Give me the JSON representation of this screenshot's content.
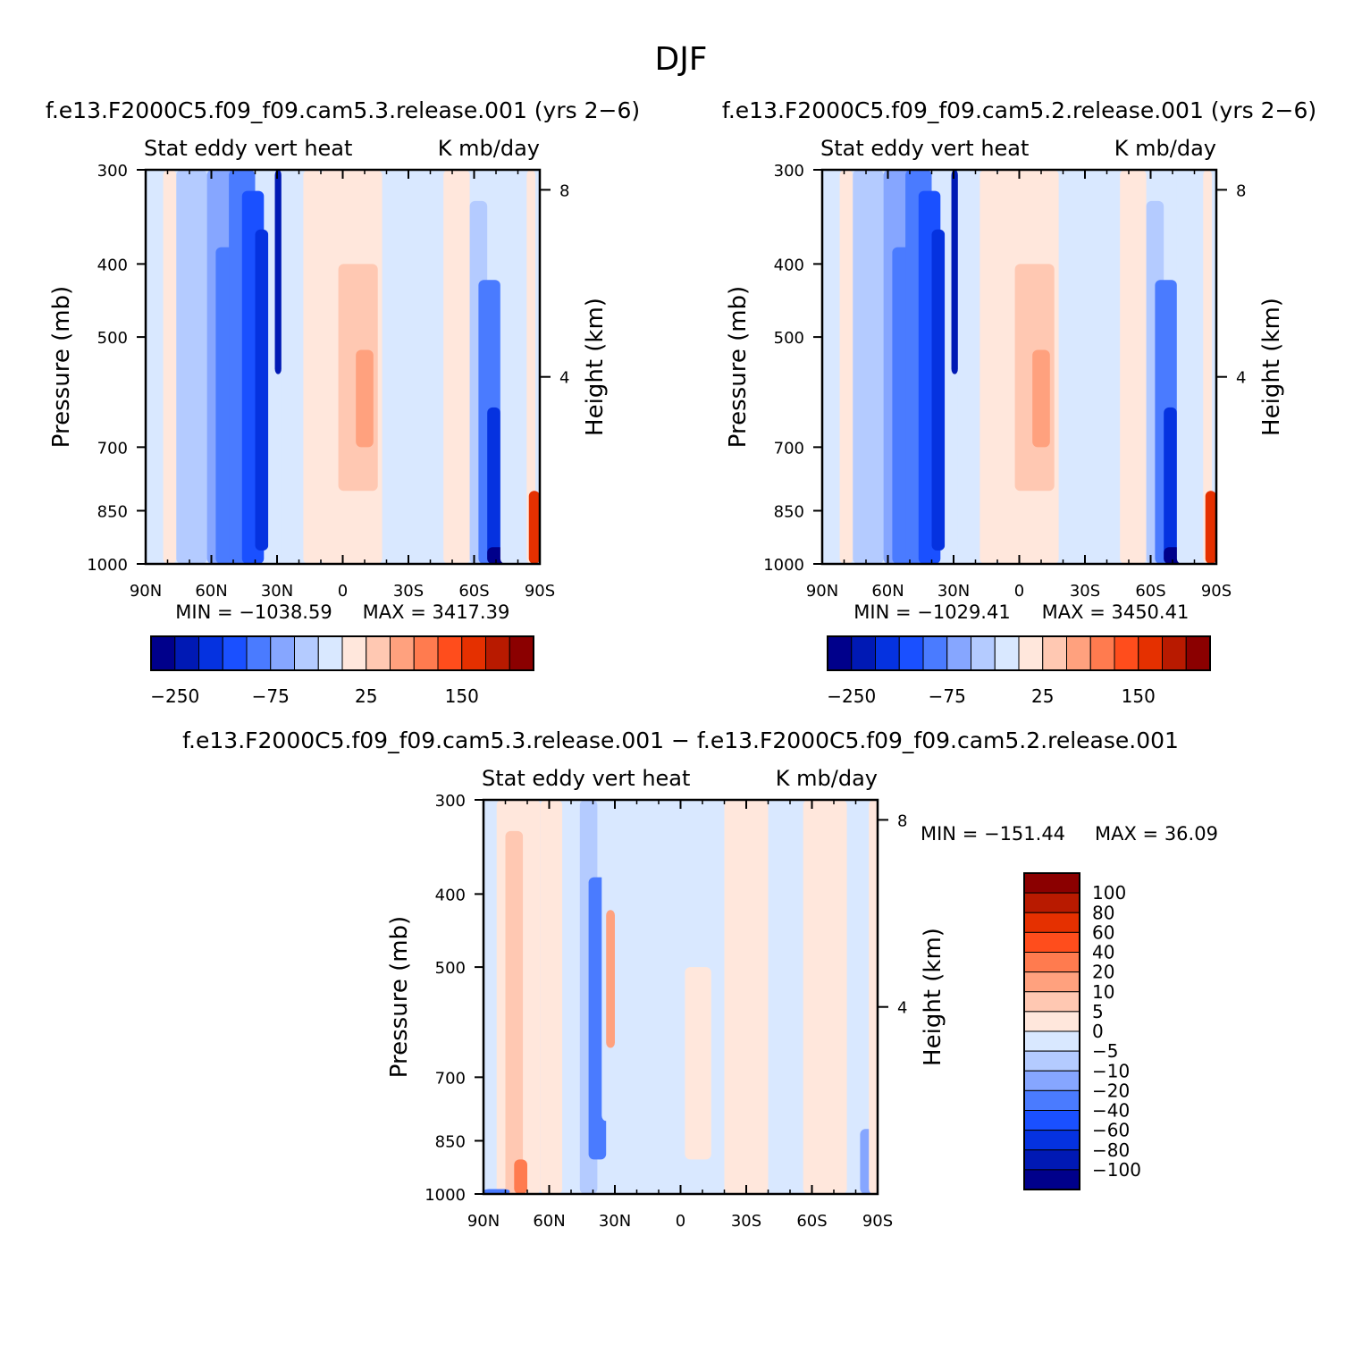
{
  "season_title": "DJF",
  "chart_data": [
    {
      "type": "heatmap",
      "id": "panel1",
      "title": "f.e13.F2000C5.f09_f09.cam5.3.release.001  (yrs 2−6)",
      "left_string": "Stat eddy vert heat",
      "right_string": "K mb/day",
      "xlabel": "",
      "ylabel": "Pressure (mb)",
      "y2label": "Height (km)",
      "x_ticks": [
        "90N",
        "60N",
        "30N",
        "0",
        "30S",
        "60S",
        "90S"
      ],
      "y_ticks": [
        "300",
        "400",
        "500",
        "700",
        "850",
        "1000"
      ],
      "y2_ticks": [
        "8",
        "4"
      ],
      "xlim": [
        90,
        -90
      ],
      "ylim": [
        1000,
        300
      ],
      "min_label": "MIN = −1038.59",
      "max_label": "MAX = 3417.39",
      "colorbar_labels": [
        "−250",
        "−75",
        "25",
        "150"
      ]
    },
    {
      "type": "heatmap",
      "id": "panel2",
      "title": "f.e13.F2000C5.f09_f09.cam5.2.release.001  (yrs 2−6)",
      "left_string": "Stat eddy vert heat",
      "right_string": "K mb/day",
      "xlabel": "",
      "ylabel": "Pressure (mb)",
      "y2label": "Height (km)",
      "x_ticks": [
        "90N",
        "60N",
        "30N",
        "0",
        "30S",
        "60S",
        "90S"
      ],
      "y_ticks": [
        "300",
        "400",
        "500",
        "700",
        "850",
        "1000"
      ],
      "y2_ticks": [
        "8",
        "4"
      ],
      "xlim": [
        90,
        -90
      ],
      "ylim": [
        1000,
        300
      ],
      "min_label": "MIN = −1029.41",
      "max_label": "MAX = 3450.41",
      "colorbar_labels": [
        "−250",
        "−75",
        "25",
        "150"
      ]
    },
    {
      "type": "heatmap",
      "id": "panel3",
      "title": "f.e13.F2000C5.f09_f09.cam5.3.release.001 − f.e13.F2000C5.f09_f09.cam5.2.release.001",
      "left_string": "Stat eddy vert heat",
      "right_string": "K mb/day",
      "xlabel": "",
      "ylabel": "Pressure (mb)",
      "y2label": "Height (km)",
      "x_ticks": [
        "90N",
        "60N",
        "30N",
        "0",
        "30S",
        "60S",
        "90S"
      ],
      "y_ticks": [
        "300",
        "400",
        "500",
        "700",
        "850",
        "1000"
      ],
      "y2_ticks": [
        "8",
        "4"
      ],
      "xlim": [
        90,
        -90
      ],
      "ylim": [
        1000,
        300
      ],
      "min_label": "MIN = −151.44",
      "max_label": "MAX =  36.09",
      "colorbar_labels": [
        "100",
        "80",
        "60",
        "40",
        "20",
        "10",
        "5",
        "0",
        "−5",
        "−10",
        "−20",
        "−40",
        "−60",
        "−80",
        "−100"
      ]
    }
  ],
  "colors": {
    "colorbar": [
      "#00008b",
      "#0019b4",
      "#0532e0",
      "#1a50ff",
      "#4a7bff",
      "#86a6ff",
      "#b4cbff",
      "#d9e8ff",
      "#ffe7dc",
      "#ffc8b2",
      "#ffa17e",
      "#ff7b4f",
      "#ff4d1c",
      "#e53000",
      "#b81a00",
      "#8b0000"
    ],
    "background_blue": "#d9e8ff",
    "background_peach": "#ffe7dc"
  }
}
